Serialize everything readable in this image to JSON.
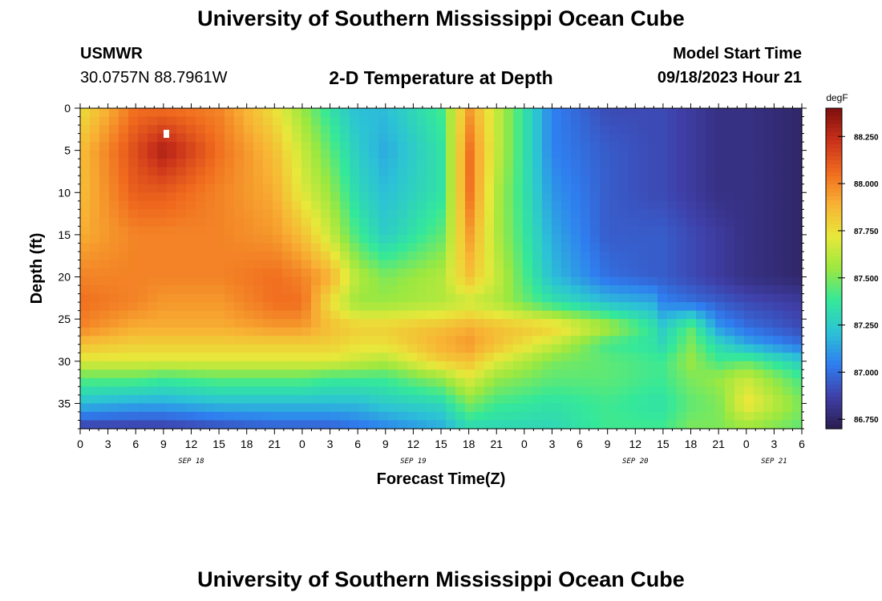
{
  "header": {
    "title": "University of Southern Mississippi Ocean Cube",
    "station": "USMWR",
    "coords": "30.0757N  88.7961W",
    "subtitle": "2-D Temperature at Depth",
    "model_start_label": "Model Start Time",
    "model_start_value": "09/18/2023 Hour 21"
  },
  "footer": {
    "title": "University of Southern Mississippi Ocean Cube"
  },
  "chart_data": {
    "type": "heatmap",
    "title": "2-D Temperature at Depth",
    "xlabel": "Forecast Time(Z)",
    "ylabel": "Depth (ft)",
    "units": "degF",
    "x_hours_range": [
      0,
      78
    ],
    "x_tick_labels": [
      "0",
      "3",
      "6",
      "9",
      "12",
      "15",
      "18",
      "21",
      "0",
      "3",
      "6",
      "9",
      "12",
      "15",
      "18",
      "21",
      "0",
      "3",
      "6",
      "9",
      "12",
      "15",
      "18",
      "21",
      "0",
      "3",
      "6"
    ],
    "date_labels": [
      {
        "label": "SEP 18",
        "hour": 12
      },
      {
        "label": "SEP 19",
        "hour": 36
      },
      {
        "label": "SEP 20",
        "hour": 60
      },
      {
        "label": "SEP 21",
        "hour": 75
      }
    ],
    "ylim": [
      0,
      38
    ],
    "y_ticks": [
      0,
      5,
      10,
      15,
      20,
      25,
      30,
      35
    ],
    "colorbar": {
      "min": 86.7,
      "max": 88.4,
      "ticks": [
        "88.250",
        "88.000",
        "87.750",
        "87.500",
        "87.250",
        "87.000",
        "86.750"
      ],
      "colors": [
        "#2b1d4f",
        "#3f3fa8",
        "#2f7ef0",
        "#2cc2d6",
        "#34e89a",
        "#9be840",
        "#e8e83a",
        "#f8b234",
        "#f06a1e",
        "#c8301a",
        "#7e0f0c"
      ]
    },
    "hour_columns": [
      0,
      6,
      9,
      15,
      21,
      24,
      27,
      30,
      33,
      39,
      42,
      45,
      51,
      57,
      62,
      63,
      66,
      69,
      72,
      78
    ],
    "depth_rows": [
      0,
      5,
      10,
      15,
      20,
      23,
      26,
      28,
      30,
      32,
      35,
      38
    ],
    "values": [
      [
        87.75,
        88.05,
        88.05,
        88.0,
        87.75,
        87.55,
        87.35,
        87.2,
        87.2,
        87.4,
        87.95,
        87.65,
        87.05,
        86.9,
        86.9,
        86.9,
        86.85,
        86.8,
        86.8,
        86.75
      ],
      [
        87.85,
        88.15,
        88.3,
        88.05,
        87.85,
        87.65,
        87.45,
        87.25,
        87.15,
        87.35,
        88.05,
        87.65,
        87.05,
        86.95,
        86.9,
        86.9,
        86.85,
        86.8,
        86.8,
        86.75
      ],
      [
        87.85,
        88.1,
        88.1,
        88.0,
        87.9,
        87.7,
        87.55,
        87.3,
        87.2,
        87.35,
        88.05,
        87.6,
        87.1,
        86.95,
        86.9,
        86.9,
        86.85,
        86.8,
        86.8,
        86.75
      ],
      [
        87.9,
        88.0,
        88.0,
        88.0,
        87.95,
        87.85,
        87.65,
        87.4,
        87.25,
        87.45,
        87.95,
        87.6,
        87.15,
        86.95,
        86.95,
        86.95,
        86.9,
        86.85,
        86.8,
        86.75
      ],
      [
        88.0,
        88.0,
        88.0,
        88.0,
        88.05,
        88.0,
        87.9,
        87.6,
        87.5,
        87.6,
        87.85,
        87.65,
        87.2,
        87.0,
        86.95,
        86.95,
        86.9,
        86.85,
        86.8,
        86.75
      ],
      [
        88.05,
        88.0,
        87.95,
        87.95,
        88.05,
        88.05,
        87.75,
        87.55,
        87.55,
        87.6,
        87.65,
        87.6,
        87.35,
        87.2,
        87.15,
        87.05,
        87.0,
        86.95,
        86.9,
        86.85
      ],
      [
        88.0,
        87.9,
        87.9,
        87.9,
        87.95,
        87.95,
        87.85,
        87.8,
        87.8,
        87.85,
        87.9,
        87.85,
        87.8,
        87.6,
        87.35,
        87.25,
        87.45,
        87.1,
        87.0,
        86.9
      ],
      [
        87.85,
        87.8,
        87.8,
        87.8,
        87.8,
        87.8,
        87.8,
        87.75,
        87.75,
        87.9,
        87.95,
        87.85,
        87.65,
        87.4,
        87.35,
        87.3,
        87.5,
        87.3,
        87.15,
        87.0
      ],
      [
        87.7,
        87.7,
        87.7,
        87.7,
        87.7,
        87.7,
        87.7,
        87.65,
        87.6,
        87.8,
        87.85,
        87.7,
        87.5,
        87.45,
        87.4,
        87.4,
        87.55,
        87.4,
        87.45,
        87.25
      ],
      [
        87.45,
        87.45,
        87.4,
        87.45,
        87.45,
        87.45,
        87.4,
        87.4,
        87.4,
        87.55,
        87.7,
        87.55,
        87.45,
        87.45,
        87.4,
        87.4,
        87.5,
        87.55,
        87.65,
        87.4
      ],
      [
        87.2,
        87.15,
        87.15,
        87.2,
        87.2,
        87.2,
        87.2,
        87.2,
        87.25,
        87.3,
        87.5,
        87.4,
        87.35,
        87.4,
        87.35,
        87.35,
        87.45,
        87.5,
        87.75,
        87.5
      ],
      [
        86.85,
        86.85,
        86.85,
        86.9,
        86.95,
        86.95,
        86.95,
        87.0,
        87.05,
        87.15,
        87.3,
        87.3,
        87.3,
        87.4,
        87.4,
        87.4,
        87.5,
        87.5,
        87.55,
        87.45
      ]
    ]
  }
}
